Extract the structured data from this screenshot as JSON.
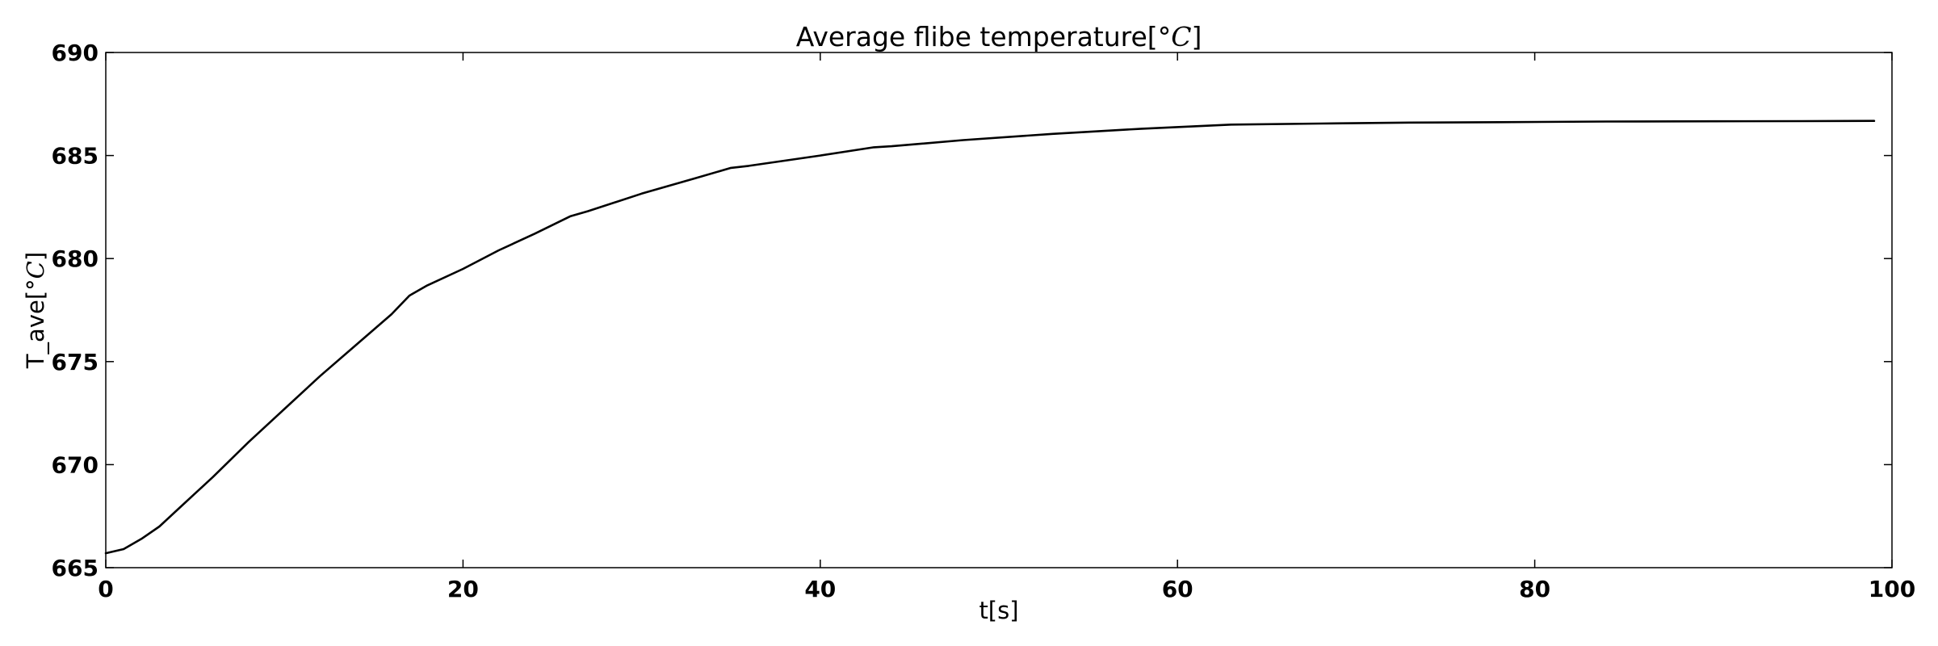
{
  "chart_data": {
    "type": "line",
    "title_main": "Average flibe temperature[",
    "title_math": "°C",
    "title_close": "]",
    "xlabel": "t[s]",
    "ylabel_main": "T_ave[",
    "ylabel_math": "°C",
    "ylabel_close": "]",
    "xlim": [
      0,
      100
    ],
    "ylim": [
      665,
      690
    ],
    "x_ticks": [
      0,
      20,
      40,
      60,
      80,
      100
    ],
    "y_ticks": [
      665,
      670,
      675,
      680,
      685,
      690
    ],
    "grid": false,
    "line_color": "#000000",
    "series": [
      {
        "x": [
          0,
          1,
          2,
          3,
          4,
          5,
          6,
          8,
          10,
          12,
          14,
          16,
          17,
          18,
          20,
          22,
          24,
          26,
          27,
          30,
          33,
          35,
          36,
          40,
          43,
          44,
          48,
          53,
          58,
          63,
          68,
          73,
          78,
          84,
          90,
          95,
          99
        ],
        "y": [
          665.7,
          665.9,
          666.4,
          667.0,
          667.8,
          668.6,
          669.4,
          671.1,
          672.7,
          674.3,
          675.8,
          677.3,
          678.2,
          678.7,
          679.5,
          680.4,
          681.2,
          682.05,
          682.3,
          683.15,
          683.9,
          684.4,
          684.5,
          685.0,
          685.4,
          685.45,
          685.75,
          686.05,
          686.3,
          686.5,
          686.55,
          686.6,
          686.62,
          686.65,
          686.66,
          686.67,
          686.68
        ]
      }
    ]
  }
}
